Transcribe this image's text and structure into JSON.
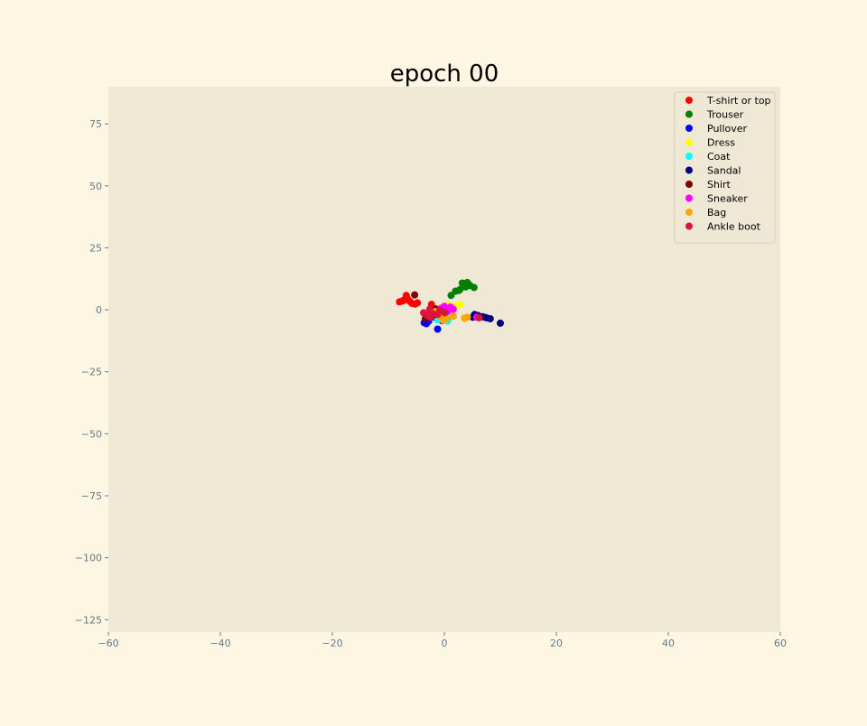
{
  "chart_data": {
    "type": "scatter",
    "title": "epoch 00",
    "xlabel": "",
    "ylabel": "",
    "xlim": [
      -60,
      60
    ],
    "ylim": [
      -130,
      90
    ],
    "xticks": [
      -60,
      -40,
      -20,
      0,
      20,
      40,
      60
    ],
    "yticks": [
      75,
      50,
      25,
      0,
      -25,
      -50,
      -75,
      -100,
      -125
    ],
    "xtick_labels": [
      "−60",
      "−40",
      "−20",
      "0",
      "20",
      "40",
      "60"
    ],
    "ytick_labels": [
      "75",
      "50",
      "25",
      "0",
      "−25",
      "−50",
      "−75",
      "−100",
      "−125"
    ],
    "grid": false,
    "legend_position": "top-right",
    "colors": {
      "figure_bg": "#fdf6e3",
      "axes_bg": "#eee8d5",
      "tick_text": "#657b83",
      "title_text": "#000000"
    },
    "series": [
      {
        "name": "T-shirt or top",
        "color": "#ff0000",
        "points": [
          [
            -8,
            3.2
          ],
          [
            -7.3,
            3.8
          ],
          [
            -6.8,
            5.8
          ],
          [
            -6.5,
            4.2
          ],
          [
            -6.2,
            3.5
          ],
          [
            -5.8,
            2.6
          ],
          [
            -5.2,
            2.3
          ],
          [
            -4.8,
            2.8
          ],
          [
            -7.5,
            3.5
          ],
          [
            -2.3,
            2.2
          ]
        ]
      },
      {
        "name": "Trouser",
        "color": "#008000",
        "points": [
          [
            1.2,
            5.8
          ],
          [
            2,
            7.5
          ],
          [
            2.6,
            7.8
          ],
          [
            3.2,
            10.8
          ],
          [
            3.8,
            9.2
          ],
          [
            4.1,
            11
          ],
          [
            4.6,
            9.8
          ],
          [
            5.3,
            9
          ],
          [
            2.8,
            8.2
          ]
        ]
      },
      {
        "name": "Pullover",
        "color": "#0000ff",
        "points": [
          [
            -3.6,
            -5.2
          ],
          [
            -3.2,
            -5.6
          ],
          [
            -2.8,
            -4.6
          ],
          [
            -1.2,
            -7.8
          ],
          [
            -0.4,
            -4.4
          ],
          [
            0.3,
            -3.3
          ],
          [
            -1.8,
            -3
          ]
        ]
      },
      {
        "name": "Dress",
        "color": "#ffff00",
        "points": [
          [
            0.6,
            2
          ],
          [
            1.4,
            1.4
          ],
          [
            2.4,
            1.8
          ],
          [
            2.8,
            2.2
          ],
          [
            1,
            0.9
          ]
        ]
      },
      {
        "name": "Coat",
        "color": "#00ffff",
        "points": [
          [
            -1.2,
            -4
          ],
          [
            0.6,
            -4.6
          ],
          [
            0.8,
            -3.4
          ],
          [
            -0.7,
            -3.6
          ]
        ]
      },
      {
        "name": "Sandal",
        "color": "#000080",
        "points": [
          [
            5.4,
            -1.9
          ],
          [
            6,
            -2.3
          ],
          [
            6.8,
            -2.8
          ],
          [
            7.2,
            -3
          ],
          [
            7.6,
            -3.3
          ],
          [
            8.2,
            -3.6
          ],
          [
            10,
            -5.4
          ],
          [
            5.1,
            -3
          ]
        ]
      },
      {
        "name": "Shirt",
        "color": "#800000",
        "points": [
          [
            -5.3,
            6
          ],
          [
            -3.4,
            -3.6
          ],
          [
            -2.4,
            -0.6
          ],
          [
            -1.6,
            0.4
          ],
          [
            -1.9,
            -2.1
          ],
          [
            -0.7,
            -1.6
          ],
          [
            -0.2,
            -3.4
          ]
        ]
      },
      {
        "name": "Sneaker",
        "color": "#ff00ff",
        "points": [
          [
            -0.6,
            0.6
          ],
          [
            0,
            1.4
          ],
          [
            0.6,
            -0.6
          ],
          [
            1.1,
            1.1
          ],
          [
            1.6,
            0.2
          ],
          [
            -0.1,
            -0.2
          ],
          [
            5.8,
            -3
          ],
          [
            -2.1,
            -1.1
          ]
        ]
      },
      {
        "name": "Bag",
        "color": "#ffa500",
        "points": [
          [
            -0.2,
            -4.3
          ],
          [
            0.4,
            -3.6
          ],
          [
            1.6,
            -2.6
          ],
          [
            3.6,
            -3.4
          ],
          [
            4.1,
            -3
          ],
          [
            -1.6,
            -0.7
          ],
          [
            -0.9,
            -2.6
          ],
          [
            -0.3,
            -1.8
          ]
        ]
      },
      {
        "name": "Ankle boot",
        "color": "#dc143c",
        "points": [
          [
            -3.7,
            -1.2
          ],
          [
            -3,
            -2.4
          ],
          [
            -2.5,
            -2.9
          ],
          [
            -2,
            -1.6
          ],
          [
            -1.2,
            -1.9
          ],
          [
            -0.8,
            -0.2
          ],
          [
            0.1,
            -1.2
          ],
          [
            6.2,
            -3.2
          ],
          [
            -2.6,
            0.3
          ]
        ]
      }
    ]
  }
}
